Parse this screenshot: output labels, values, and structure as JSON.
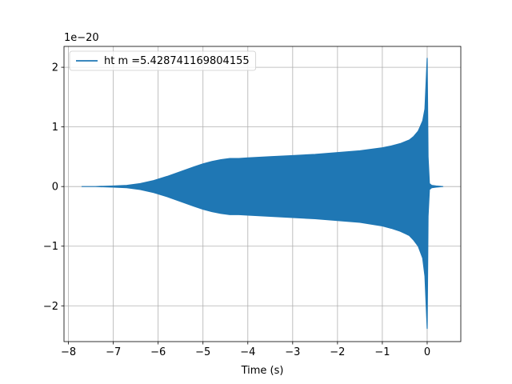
{
  "chart_data": {
    "type": "line",
    "title": "",
    "xlabel": "Time (s)",
    "ylabel": "",
    "y_offset_label": "1e−20",
    "xlim": [
      -8.1,
      0.75
    ],
    "ylim": [
      -2.6,
      2.35
    ],
    "xticks": [
      -8,
      -7,
      -6,
      -5,
      -4,
      -3,
      -2,
      -1,
      0
    ],
    "xtick_labels": [
      "−8",
      "−7",
      "−6",
      "−5",
      "−4",
      "−3",
      "−2",
      "−1",
      "0"
    ],
    "yticks": [
      -2,
      -1,
      0,
      1,
      2
    ],
    "ytick_labels": [
      "−2",
      "−1",
      "0",
      "1",
      "2"
    ],
    "grid": true,
    "legend_position": "top-left",
    "series": [
      {
        "name": "ht m =5.428741169804155",
        "color": "#1f77b4",
        "x": [
          -7.7,
          -7.4,
          -7.0,
          -6.7,
          -6.4,
          -6.1,
          -5.8,
          -5.5,
          -5.2,
          -5.0,
          -4.8,
          -4.6,
          -4.4,
          -4.2,
          -4.0,
          -3.5,
          -3.0,
          -2.5,
          -2.0,
          -1.5,
          -1.0,
          -0.8,
          -0.6,
          -0.4,
          -0.3,
          -0.2,
          -0.1,
          -0.05,
          0.0,
          0.02,
          0.05,
          0.1,
          0.2,
          0.35
        ],
        "y_upper": [
          0.0,
          0.0,
          0.01,
          0.02,
          0.05,
          0.1,
          0.17,
          0.25,
          0.33,
          0.38,
          0.42,
          0.45,
          0.47,
          0.47,
          0.48,
          0.5,
          0.52,
          0.54,
          0.57,
          0.6,
          0.65,
          0.68,
          0.72,
          0.78,
          0.84,
          0.93,
          1.1,
          1.3,
          2.15,
          0.5,
          0.05,
          0.02,
          0.01,
          0.0
        ],
        "y_lower": [
          0.0,
          0.0,
          -0.01,
          -0.02,
          -0.05,
          -0.1,
          -0.17,
          -0.25,
          -0.33,
          -0.38,
          -0.42,
          -0.45,
          -0.47,
          -0.47,
          -0.48,
          -0.5,
          -0.52,
          -0.54,
          -0.57,
          -0.6,
          -0.66,
          -0.7,
          -0.75,
          -0.82,
          -0.9,
          -1.0,
          -1.2,
          -1.5,
          -2.38,
          -0.5,
          -0.05,
          -0.02,
          -0.01,
          0.0
        ]
      }
    ]
  }
}
